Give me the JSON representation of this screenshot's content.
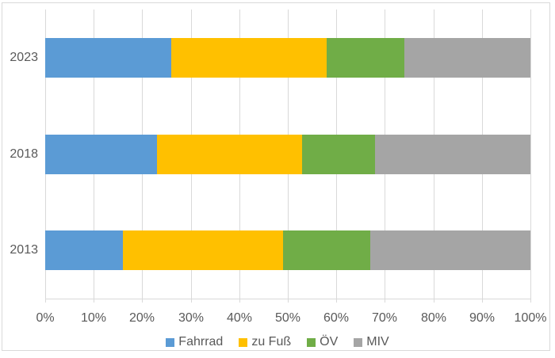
{
  "chart_data": {
    "type": "bar",
    "orientation": "horizontal-stacked",
    "title": "",
    "units": "percent",
    "categories": [
      "2023",
      "2018",
      "2013"
    ],
    "series": [
      {
        "name": "Fahrrad",
        "color": "#5B9BD5",
        "values": [
          26,
          23,
          16
        ]
      },
      {
        "name": "zu Fuß",
        "color": "#FFC000",
        "values": [
          32,
          30,
          33
        ]
      },
      {
        "name": "ÖV",
        "color": "#70AD47",
        "values": [
          16,
          15,
          18
        ]
      },
      {
        "name": "MIV",
        "color": "#A5A5A5",
        "values": [
          26,
          32,
          33
        ]
      }
    ],
    "x_axis": {
      "min": 0,
      "max": 100,
      "tick_labels": [
        "0%",
        "10%",
        "20%",
        "30%",
        "40%",
        "50%",
        "60%",
        "70%",
        "80%",
        "90%",
        "100%"
      ]
    },
    "legend": {
      "position": "bottom",
      "entries": [
        "Fahrrad",
        "zu Fuß",
        "ÖV",
        "MIV"
      ]
    },
    "grid": true,
    "style_colors": {
      "gridline": "#d9d9d9",
      "axis_line": "#d9d9d9",
      "frame_border": "#d9d9d9",
      "label_text": "#595959",
      "background": "#ffffff"
    }
  }
}
